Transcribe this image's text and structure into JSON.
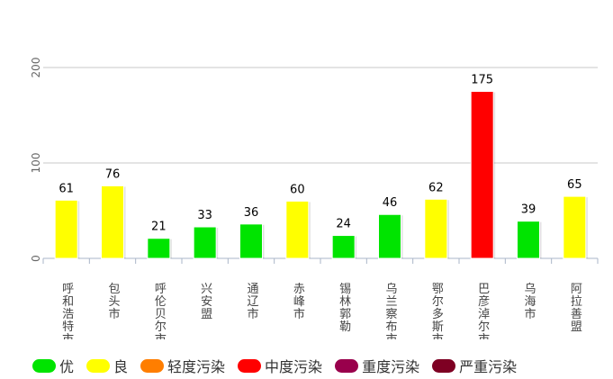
{
  "chart_data": {
    "type": "bar",
    "title": "",
    "xlabel": "",
    "ylabel": "",
    "ylim": [
      0,
      200
    ],
    "yticks": [
      "0",
      "100",
      "200"
    ],
    "categories": [
      "呼和浩特市",
      "包头市",
      "呼伦贝尔市",
      "兴安盟",
      "通辽市",
      "赤峰市",
      "锡林郭勒盟",
      "乌兰察布市",
      "鄂尔多斯市",
      "巴彦淖尔市",
      "乌海市",
      "阿拉善盟"
    ],
    "visible_tick_labels": [
      "呼和浩特市",
      "包头市",
      "呼伦贝尔市",
      "兴安盟",
      "通辽市",
      "赤峰市",
      "锡林郭勒",
      "乌兰察布市",
      "鄂尔多斯市",
      "巴彦淖尔市",
      "乌海市",
      "阿拉善盟"
    ],
    "values": [
      61,
      76,
      21,
      33,
      36,
      60,
      24,
      46,
      62,
      175,
      39,
      65
    ],
    "levels": [
      "良",
      "良",
      "优",
      "优",
      "优",
      "良",
      "优",
      "优",
      "良",
      "中度污染",
      "优",
      "良"
    ],
    "grid": true,
    "legend_position": "bottom-left"
  },
  "legend": [
    {
      "label": "优",
      "color": "#00e400"
    },
    {
      "label": "良",
      "color": "#ffff00"
    },
    {
      "label": "轻度污染",
      "color": "#ff7e00"
    },
    {
      "label": "中度污染",
      "color": "#ff0000"
    },
    {
      "label": "重度污染",
      "color": "#99004c"
    },
    {
      "label": "严重污染",
      "color": "#7e0023"
    }
  ]
}
